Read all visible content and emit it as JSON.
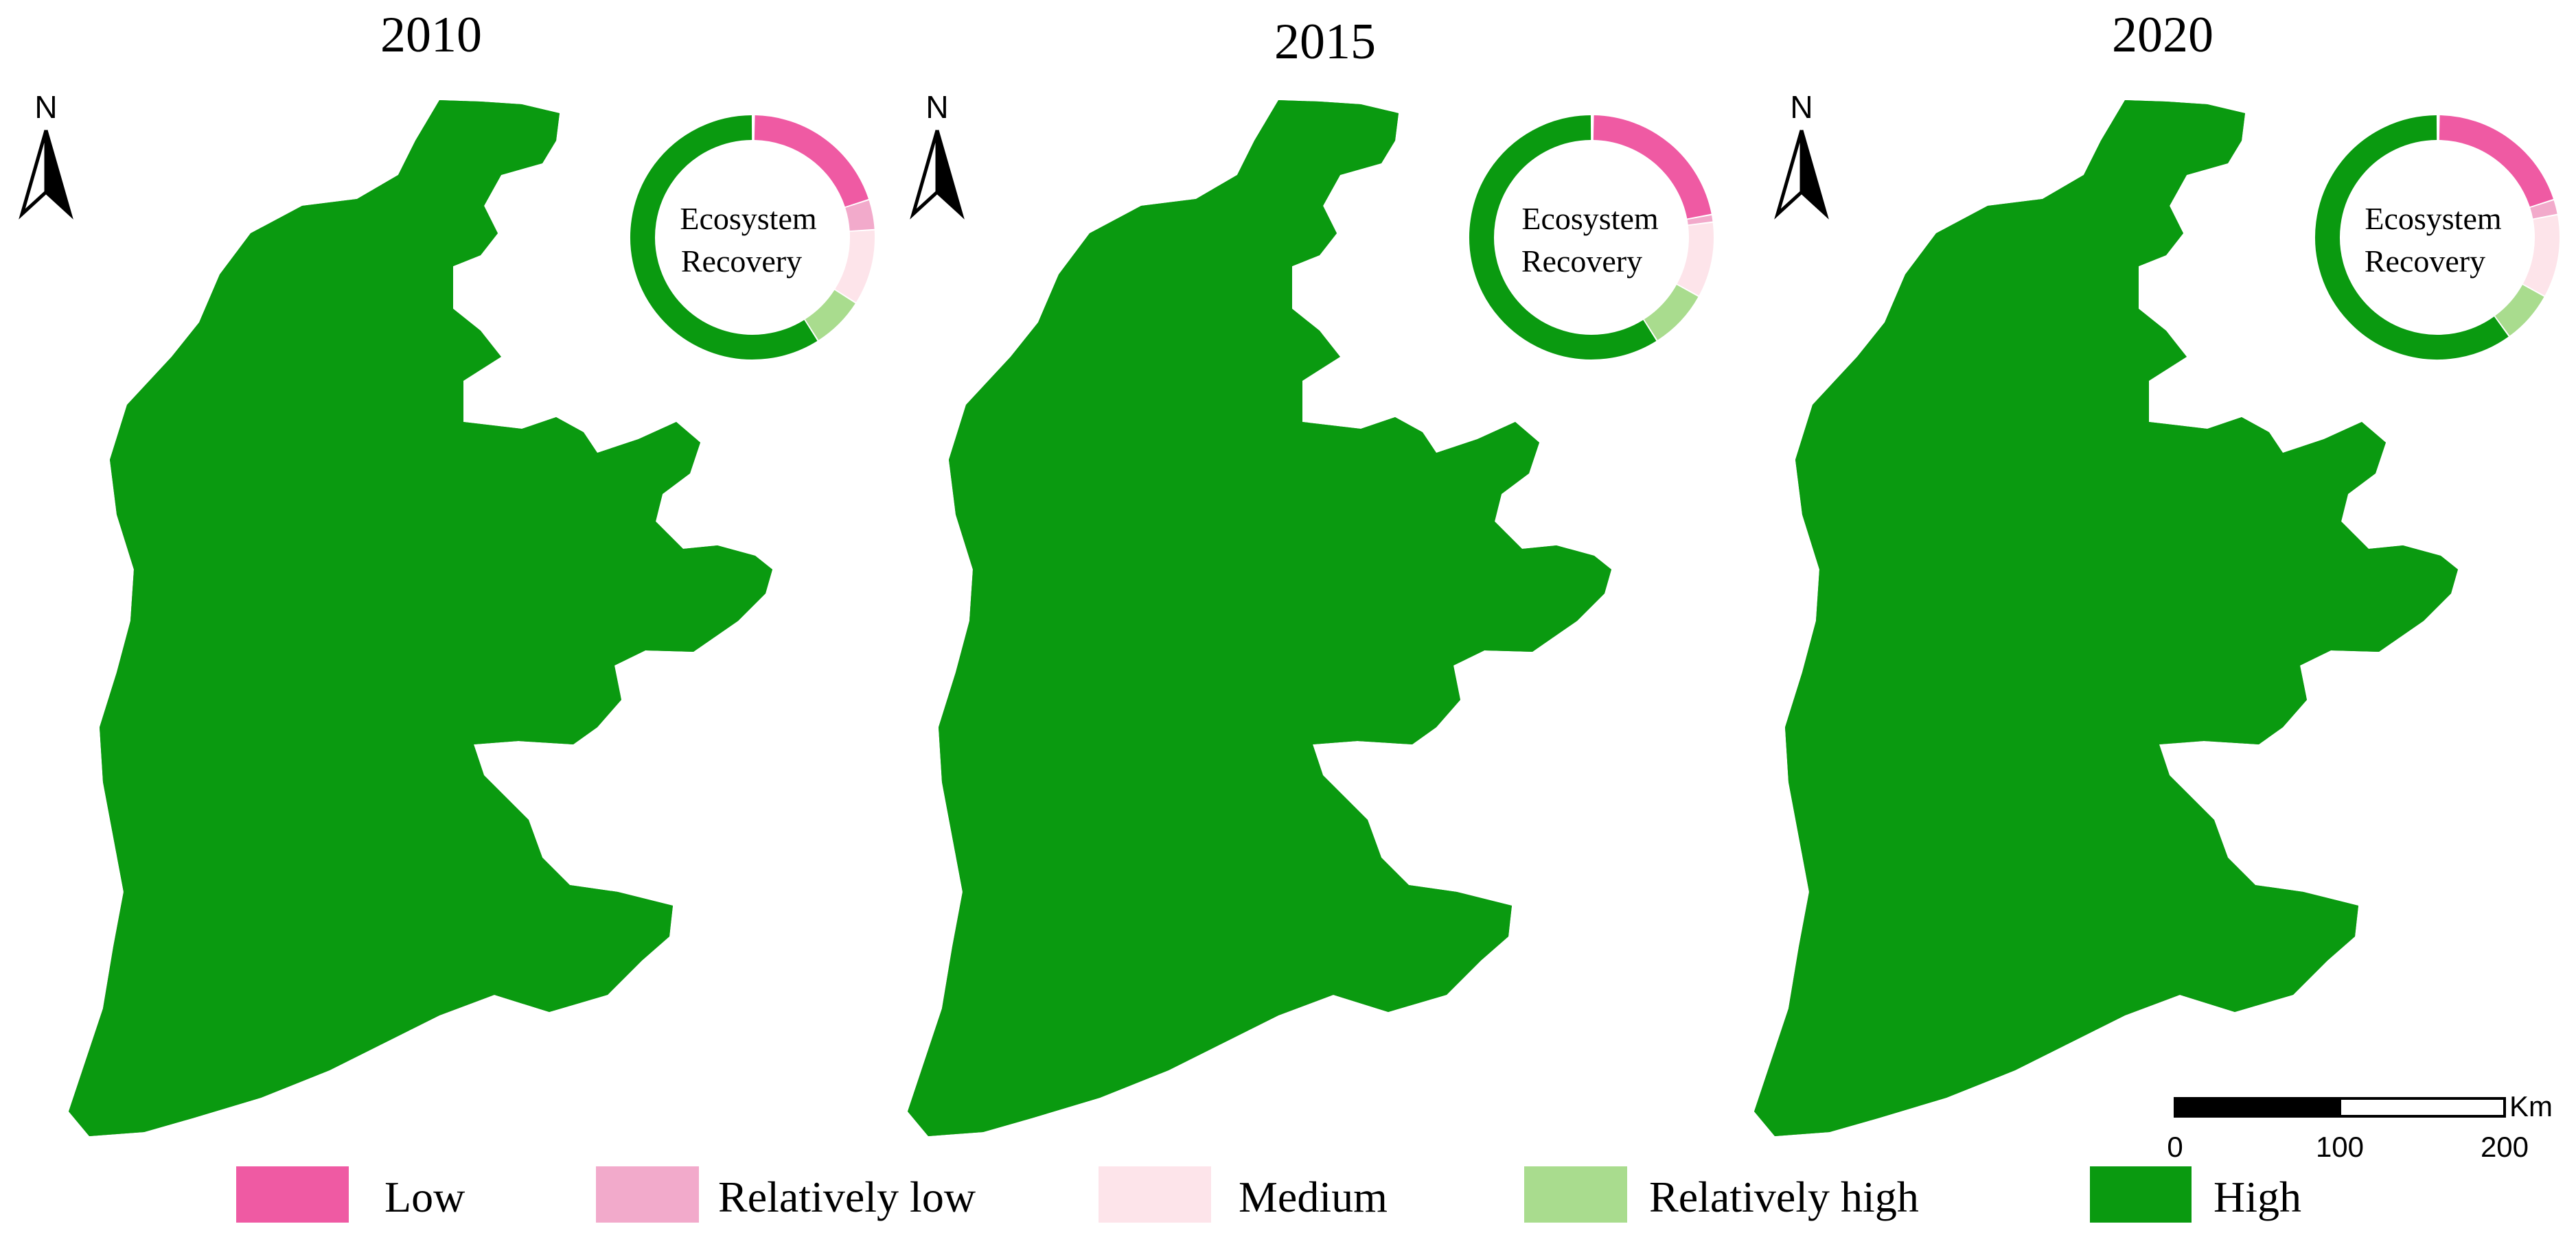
{
  "panels": [
    {
      "year": "2010",
      "donut_label": [
        "Ecosystem",
        "Recovery"
      ],
      "north_label": "N",
      "shares": [
        0.2,
        0.04,
        0.1,
        0.07,
        0.59
      ]
    },
    {
      "year": "2015",
      "donut_label": [
        "Ecosystem",
        "Recovery"
      ],
      "north_label": "N",
      "shares": [
        0.22,
        0.01,
        0.1,
        0.08,
        0.59
      ]
    },
    {
      "year": "2020",
      "donut_label": [
        "Ecosystem",
        "Recovery"
      ],
      "north_label": "N",
      "shares": [
        0.2,
        0.02,
        0.11,
        0.07,
        0.6
      ]
    }
  ],
  "classes": [
    {
      "label": "Low",
      "color": "#ef5aa3"
    },
    {
      "label": "Relatively low",
      "color": "#f2aacb"
    },
    {
      "label": "Medium",
      "color": "#fde4ea"
    },
    {
      "label": "Relatively high",
      "color": "#a9dc8e"
    },
    {
      "label": "High",
      "color": "#0a9a10"
    }
  ],
  "scale_bar": {
    "unit": "Km",
    "ticks": [
      "0",
      "100",
      "200"
    ]
  }
}
